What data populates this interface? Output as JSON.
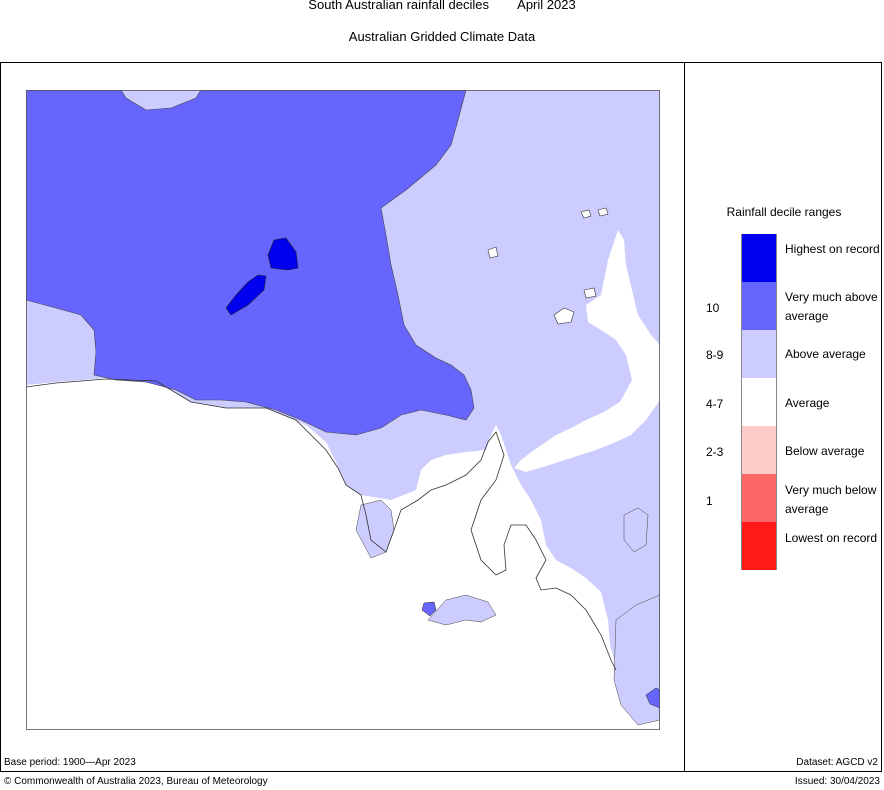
{
  "header": {
    "title": "South Australian rainfall deciles",
    "period": "April 2023",
    "subtitle": "Australian Gridded Climate Data"
  },
  "legend": {
    "title": "Rainfall decile ranges",
    "categories": [
      {
        "label": "Highest on record",
        "decile": "",
        "color": "#0000ee"
      },
      {
        "label": "Very much above average",
        "decile": "10",
        "color": "#6666ff"
      },
      {
        "label": "Above average",
        "decile": "8-9",
        "color": "#ccccff"
      },
      {
        "label": "Average",
        "decile": "4-7",
        "color": "#ffffff"
      },
      {
        "label": "Below average",
        "decile": "2-3",
        "color": "#ffcccc"
      },
      {
        "label": "Very much below average",
        "decile": "1",
        "color": "#ff6666"
      },
      {
        "label": "Lowest on record",
        "decile": "",
        "color": "#ff1a1a"
      }
    ]
  },
  "footer": {
    "base_period": "Base period: 1900—Apr 2023",
    "dataset": "Dataset: AGCD v2",
    "copyright": "© Commonwealth of Australia 2023, Bureau of Meteorology",
    "issued": "Issued: 30/04/2023"
  }
}
